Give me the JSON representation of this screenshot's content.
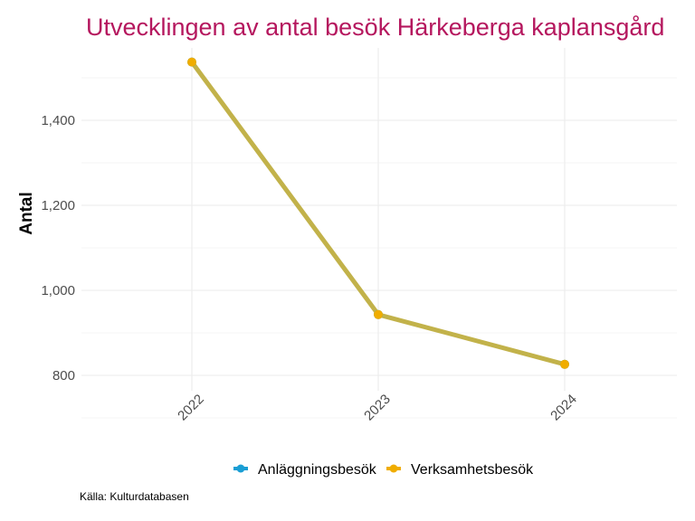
{
  "chart_data": {
    "type": "line",
    "title": "Utvecklingen av antal besök Härkeberga kaplansgård",
    "xlabel": "",
    "ylabel": "Antal",
    "x": [
      "2022",
      "2023",
      "2024"
    ],
    "ylim": [
      700,
      1580
    ],
    "y_ticks": [
      800,
      1000,
      1200,
      1400
    ],
    "y_tick_labels": [
      "800",
      "1,000",
      "1,200",
      "1,400"
    ],
    "grid": true,
    "legend_position": "bottom",
    "series": [
      {
        "name": "Anläggningsbesök",
        "color": "#1a9ed4",
        "values": [
          1537,
          943,
          826
        ]
      },
      {
        "name": "Verksamhetsbesök",
        "color": "#f0ad00",
        "values": [
          1537,
          943,
          826
        ]
      }
    ],
    "caption": "Källa: Kulturdatabasen",
    "line_color": "#c2b24a"
  }
}
